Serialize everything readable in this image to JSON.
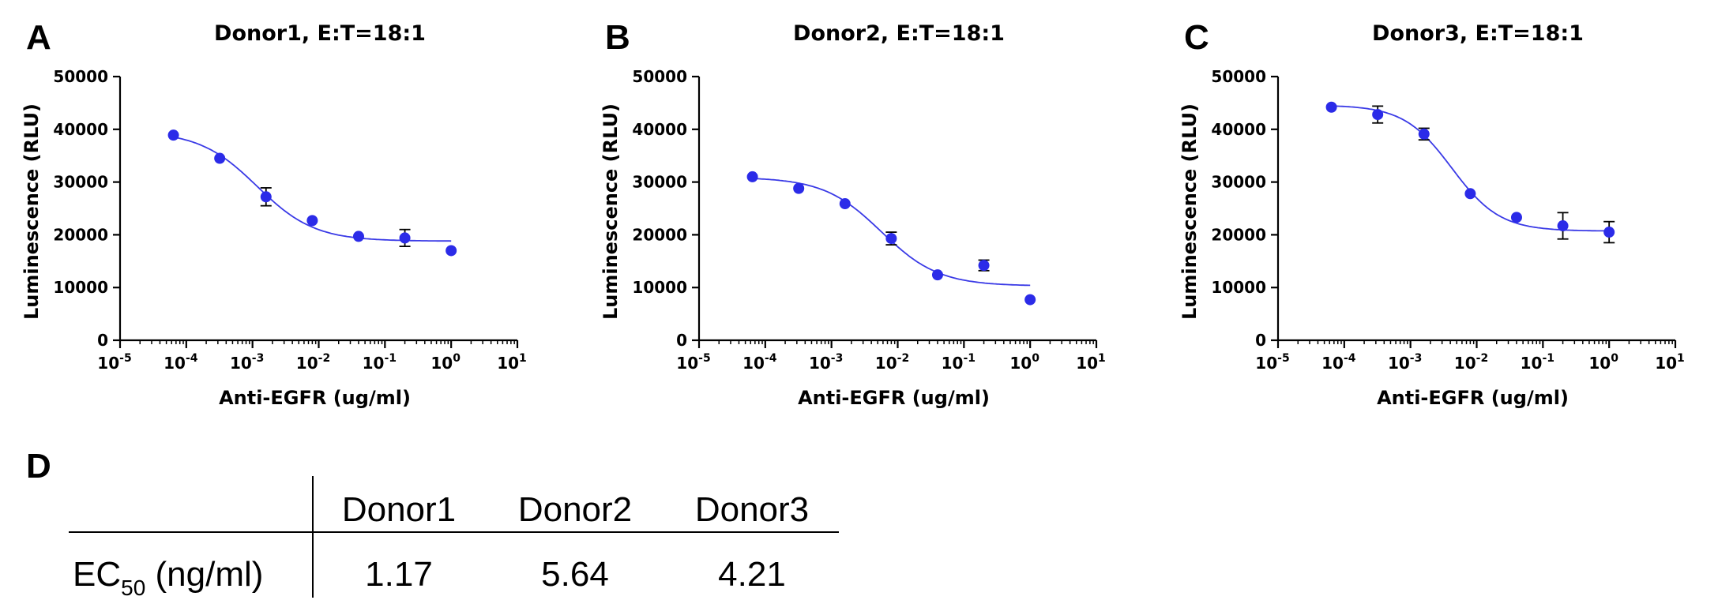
{
  "colors": {
    "series": "#2b2be8",
    "curve": "#3a3ae6",
    "axis": "#000000"
  },
  "chart_data": [
    {
      "type": "scatter",
      "panel": "A",
      "title": "Donor1, E:T=18:1",
      "xlabel": "Anti-EGFR (ug/ml)",
      "ylabel": "Luminescence (RLU)",
      "xscale": "log",
      "xlim": [
        1e-05,
        10
      ],
      "ylim": [
        0,
        50000
      ],
      "x_tick_labels": [
        "10",
        "10",
        "10",
        "10",
        "10",
        "10",
        "10"
      ],
      "x_tick_exponents": [
        "-5",
        "-4",
        "-3",
        "-2",
        "-1",
        "0",
        "1"
      ],
      "y_ticks": [
        0,
        10000,
        20000,
        30000,
        40000,
        50000
      ],
      "y_tick_labels": [
        "0",
        "10000",
        "20000",
        "30000",
        "40000",
        "50000"
      ],
      "points": [
        {
          "x": 6.4e-05,
          "y": 38900,
          "err": 0
        },
        {
          "x": 0.00032,
          "y": 34500,
          "err": 0
        },
        {
          "x": 0.0016,
          "y": 27200,
          "err": 1700
        },
        {
          "x": 0.008,
          "y": 22700,
          "err": 0
        },
        {
          "x": 0.04,
          "y": 19700,
          "err": 0
        },
        {
          "x": 0.2,
          "y": 19400,
          "err": 1600
        },
        {
          "x": 1.0,
          "y": 17000,
          "err": 0
        }
      ],
      "fit": {
        "top": 39600,
        "bottom": 18800,
        "ec50": 0.00117,
        "hill": 1.0
      }
    },
    {
      "type": "scatter",
      "panel": "B",
      "title": "Donor2, E:T=18:1",
      "xlabel": "Anti-EGFR (ug/ml)",
      "ylabel": "Luminescence (RLU)",
      "xscale": "log",
      "xlim": [
        1e-05,
        10
      ],
      "ylim": [
        0,
        50000
      ],
      "x_tick_labels": [
        "10",
        "10",
        "10",
        "10",
        "10",
        "10",
        "10"
      ],
      "x_tick_exponents": [
        "-5",
        "-4",
        "-3",
        "-2",
        "-1",
        "0",
        "1"
      ],
      "y_ticks": [
        0,
        10000,
        20000,
        30000,
        40000,
        50000
      ],
      "y_tick_labels": [
        "0",
        "10000",
        "20000",
        "30000",
        "40000",
        "50000"
      ],
      "points": [
        {
          "x": 6.4e-05,
          "y": 31000,
          "err": 0
        },
        {
          "x": 0.00032,
          "y": 28800,
          "err": 0
        },
        {
          "x": 0.0016,
          "y": 25900,
          "err": 0
        },
        {
          "x": 0.008,
          "y": 19300,
          "err": 1200
        },
        {
          "x": 0.04,
          "y": 12400,
          "err": 0
        },
        {
          "x": 0.2,
          "y": 14200,
          "err": 1000
        },
        {
          "x": 1.0,
          "y": 7700,
          "err": 0
        }
      ],
      "fit": {
        "top": 30900,
        "bottom": 10300,
        "ec50": 0.00564,
        "hill": 1.0
      }
    },
    {
      "type": "scatter",
      "panel": "C",
      "title": "Donor3, E:T=18:1",
      "xlabel": "Anti-EGFR (ug/ml)",
      "ylabel": "Luminescence (RLU)",
      "xscale": "log",
      "xlim": [
        1e-05,
        10
      ],
      "ylim": [
        0,
        50000
      ],
      "x_tick_labels": [
        "10",
        "10",
        "10",
        "10",
        "10",
        "10",
        "10"
      ],
      "x_tick_exponents": [
        "-5",
        "-4",
        "-3",
        "-2",
        "-1",
        "0",
        "1"
      ],
      "y_ticks": [
        0,
        10000,
        20000,
        30000,
        40000,
        50000
      ],
      "y_tick_labels": [
        "0",
        "10000",
        "20000",
        "30000",
        "40000",
        "50000"
      ],
      "points": [
        {
          "x": 6.4e-05,
          "y": 44200,
          "err": 0
        },
        {
          "x": 0.00032,
          "y": 42800,
          "err": 1600
        },
        {
          "x": 0.0016,
          "y": 39100,
          "err": 1100
        },
        {
          "x": 0.008,
          "y": 27800,
          "err": 0
        },
        {
          "x": 0.04,
          "y": 23300,
          "err": 0
        },
        {
          "x": 0.2,
          "y": 21700,
          "err": 2500
        },
        {
          "x": 1.0,
          "y": 20500,
          "err": 2000
        }
      ],
      "fit": {
        "top": 44600,
        "bottom": 20700,
        "ec50": 0.00421,
        "hill": 1.2
      }
    },
    {
      "type": "table",
      "panel": "D",
      "columns": [
        "",
        "Donor1",
        "Donor2",
        "Donor3"
      ],
      "row_label_main": "EC",
      "row_label_sub": "50",
      "row_label_unit": " (ng/ml)",
      "values": [
        "1.17",
        "5.64",
        "4.21"
      ]
    }
  ]
}
